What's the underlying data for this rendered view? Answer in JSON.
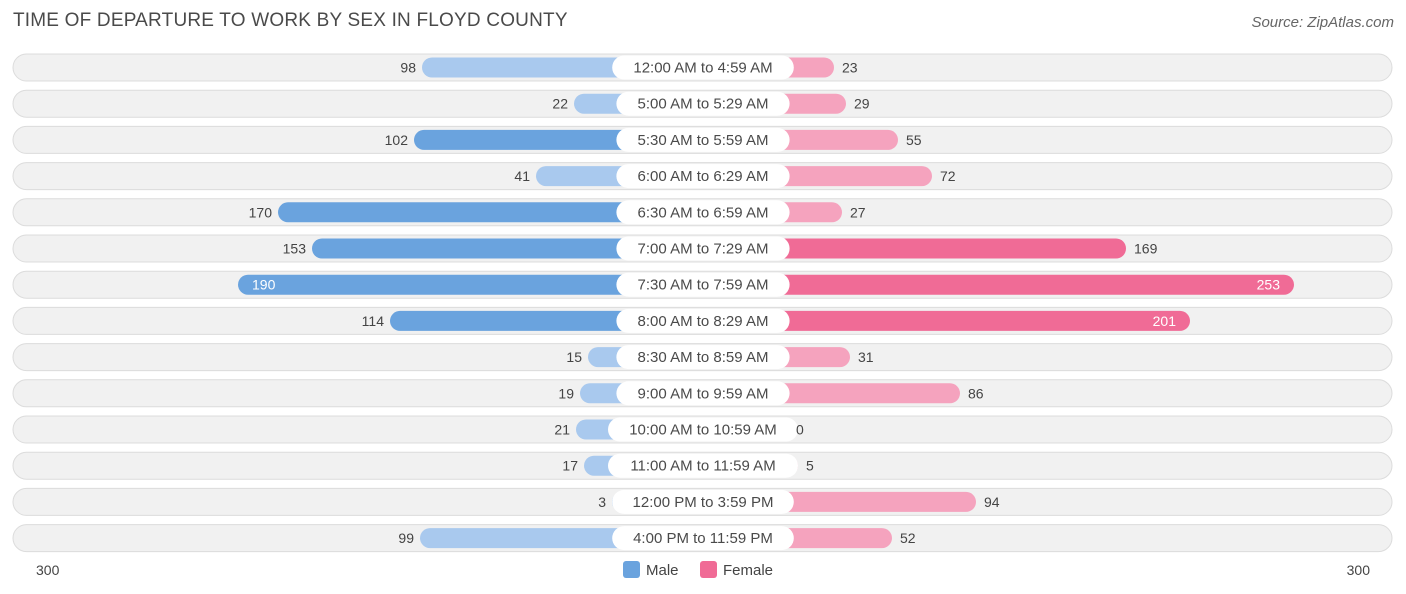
{
  "chart_data": {
    "type": "bar",
    "orientation": "horizontal-diverging",
    "title": "TIME OF DEPARTURE TO WORK BY SEX IN FLOYD COUNTY",
    "source": "Source: ZipAtlas.com",
    "categories": [
      "12:00 AM to 4:59 AM",
      "5:00 AM to 5:29 AM",
      "5:30 AM to 5:59 AM",
      "6:00 AM to 6:29 AM",
      "6:30 AM to 6:59 AM",
      "7:00 AM to 7:29 AM",
      "7:30 AM to 7:59 AM",
      "8:00 AM to 8:29 AM",
      "8:30 AM to 8:59 AM",
      "9:00 AM to 9:59 AM",
      "10:00 AM to 10:59 AM",
      "11:00 AM to 11:59 AM",
      "12:00 PM to 3:59 PM",
      "4:00 PM to 11:59 PM"
    ],
    "series": [
      {
        "name": "Male",
        "values": [
          98,
          22,
          102,
          41,
          170,
          153,
          190,
          114,
          15,
          19,
          21,
          17,
          3,
          99
        ]
      },
      {
        "name": "Female",
        "values": [
          23,
          29,
          55,
          72,
          27,
          169,
          253,
          201,
          31,
          86,
          0,
          5,
          94,
          52
        ]
      }
    ],
    "axis": {
      "left_label": "300",
      "right_label": "300",
      "max": 300
    },
    "legend": [
      "Male",
      "Female"
    ],
    "legend_position": "bottom-center",
    "colors": {
      "male": "#6aa3de",
      "male_light": "#a9c9ee",
      "female": "#f06b96",
      "female_light": "#f5a3be"
    }
  }
}
